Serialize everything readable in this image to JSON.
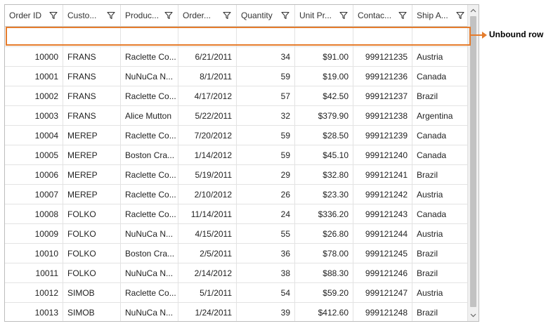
{
  "columns": [
    {
      "label": "Order ID",
      "align": "right"
    },
    {
      "label": "Custo...",
      "align": "left"
    },
    {
      "label": "Produc...",
      "align": "left"
    },
    {
      "label": "Order...",
      "align": "right"
    },
    {
      "label": "Quantity",
      "align": "right"
    },
    {
      "label": "Unit Pr...",
      "align": "right"
    },
    {
      "label": "Contac...",
      "align": "right"
    },
    {
      "label": "Ship A...",
      "align": "left"
    }
  ],
  "unbound_row": [
    "",
    "",
    "",
    "",
    "",
    "",
    "",
    ""
  ],
  "rows": [
    [
      "10000",
      "FRANS",
      "Raclette  Co...",
      "6/21/2011",
      "34",
      "$91.00",
      "999121235",
      "Austria"
    ],
    [
      "10001",
      "FRANS",
      "NuNuCa  N...",
      "8/1/2011",
      "59",
      "$19.00",
      "999121236",
      "Canada"
    ],
    [
      "10002",
      "FRANS",
      "Raclette  Co...",
      "4/17/2012",
      "57",
      "$42.50",
      "999121237",
      "Brazil"
    ],
    [
      "10003",
      "FRANS",
      "Alice Mutton",
      "5/22/2011",
      "32",
      "$379.90",
      "999121238",
      "Argentina"
    ],
    [
      "10004",
      "MEREP",
      "Raclette  Co...",
      "7/20/2012",
      "59",
      "$28.50",
      "999121239",
      "Canada"
    ],
    [
      "10005",
      "MEREP",
      "Boston  Cra...",
      "1/14/2012",
      "59",
      "$45.10",
      "999121240",
      "Canada"
    ],
    [
      "10006",
      "MEREP",
      "Raclette  Co...",
      "5/19/2011",
      "29",
      "$32.80",
      "999121241",
      "Brazil"
    ],
    [
      "10007",
      "MEREP",
      "Raclette  Co...",
      "2/10/2012",
      "26",
      "$23.30",
      "999121242",
      "Austria"
    ],
    [
      "10008",
      "FOLKO",
      "Raclette  Co...",
      "11/14/2011",
      "24",
      "$336.20",
      "999121243",
      "Canada"
    ],
    [
      "10009",
      "FOLKO",
      "NuNuCa  N...",
      "4/15/2011",
      "55",
      "$26.80",
      "999121244",
      "Austria"
    ],
    [
      "10010",
      "FOLKO",
      "Boston  Cra...",
      "2/5/2011",
      "36",
      "$78.00",
      "999121245",
      "Brazil"
    ],
    [
      "10011",
      "FOLKO",
      "NuNuCa  N...",
      "2/14/2012",
      "38",
      "$88.30",
      "999121246",
      "Brazil"
    ],
    [
      "10012",
      "SIMOB",
      "Raclette  Co...",
      "5/1/2011",
      "54",
      "$59.20",
      "999121247",
      "Austria"
    ],
    [
      "10013",
      "SIMOB",
      "NuNuCa  N...",
      "1/24/2011",
      "39",
      "$412.60",
      "999121248",
      "Brazil"
    ]
  ],
  "callout": {
    "label": "Unbound row",
    "color": "#e57c2c"
  },
  "icons": {
    "filter": "filter-icon",
    "scroll_up": "chevron-up-icon",
    "scroll_down": "chevron-down-icon"
  }
}
